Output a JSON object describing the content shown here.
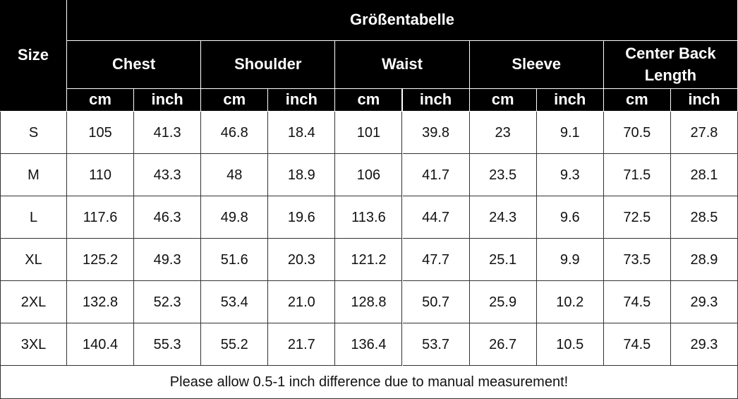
{
  "table": {
    "size_header": "Size",
    "title": "Größentabelle",
    "groups": [
      "Chest",
      "Shoulder",
      "Waist",
      "Sleeve",
      "Center Back Length"
    ],
    "units": [
      "cm",
      "inch"
    ],
    "rows": [
      [
        "S",
        "105",
        "41.3",
        "46.8",
        "18.4",
        "101",
        "39.8",
        "23",
        "9.1",
        "70.5",
        "27.8"
      ],
      [
        "M",
        "110",
        "43.3",
        "48",
        "18.9",
        "106",
        "41.7",
        "23.5",
        "9.3",
        "71.5",
        "28.1"
      ],
      [
        "L",
        "117.6",
        "46.3",
        "49.8",
        "19.6",
        "113.6",
        "44.7",
        "24.3",
        "9.6",
        "72.5",
        "28.5"
      ],
      [
        "XL",
        "125.2",
        "49.3",
        "51.6",
        "20.3",
        "121.2",
        "47.7",
        "25.1",
        "9.9",
        "73.5",
        "28.9"
      ],
      [
        "2XL",
        "132.8",
        "52.3",
        "53.4",
        "21.0",
        "128.8",
        "50.7",
        "25.9",
        "10.2",
        "74.5",
        "29.3"
      ],
      [
        "3XL",
        "140.4",
        "55.3",
        "55.2",
        "21.7",
        "136.4",
        "53.7",
        "26.7",
        "10.5",
        "74.5",
        "29.3"
      ]
    ],
    "footer": "Please allow 0.5-1 inch difference due to manual measurement!"
  }
}
